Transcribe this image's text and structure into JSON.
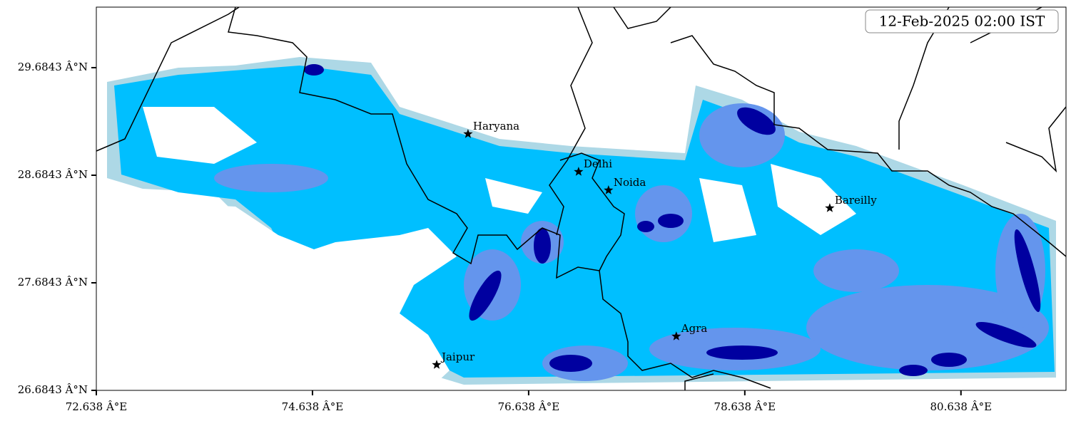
{
  "chart_data": {
    "type": "map",
    "timestamp": "12-Feb-2025 02:00 IST",
    "xlim": [
      72.638,
      81.61
    ],
    "ylim": [
      26.6843,
      30.247
    ],
    "xticks": [
      {
        "value": 72.638,
        "label": "72.638 Â°E"
      },
      {
        "value": 74.638,
        "label": "74.638 Â°E"
      },
      {
        "value": 76.638,
        "label": "76.638 Â°E"
      },
      {
        "value": 78.638,
        "label": "78.638 Â°E"
      },
      {
        "value": 80.638,
        "label": "80.638 Â°E"
      }
    ],
    "yticks": [
      {
        "value": 26.6843,
        "label": "26.6843 Â°N"
      },
      {
        "value": 27.6843,
        "label": "27.6843 Â°N"
      },
      {
        "value": 28.6843,
        "label": "28.6843 Â°N"
      },
      {
        "value": 29.6843,
        "label": "29.6843 Â°N"
      }
    ],
    "cities": {
      "names": [
        "Haryana",
        "Delhi",
        "Noida",
        "Bareilly",
        "Agra",
        "Jaipur"
      ],
      "lon": [
        76.077,
        77.1,
        77.377,
        79.424,
        78.004,
        75.787
      ],
      "lat": [
        29.068,
        28.717,
        28.545,
        28.379,
        27.187,
        26.922
      ]
    }
  }
}
